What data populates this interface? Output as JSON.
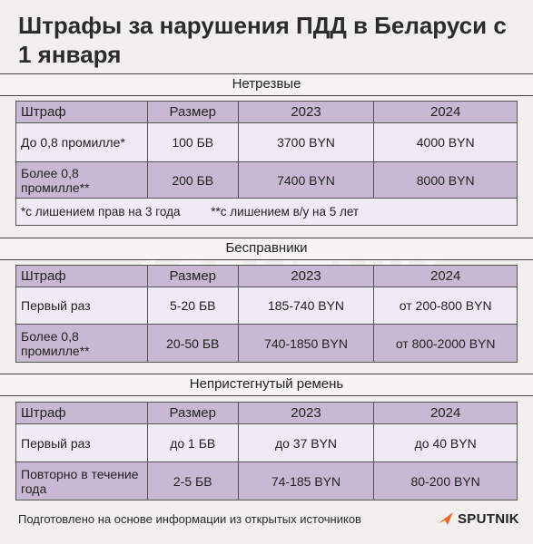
{
  "title": "Штрафы за нарушения ПДД в Беларуси с 1 января",
  "watermark": "SPUTNIK",
  "columns": [
    "Штраф",
    "Размер",
    "2023",
    "2024"
  ],
  "sections": [
    {
      "name": "Нетрезвые",
      "rows": [
        [
          "До 0,8 промилле*",
          "100 БВ",
          "3700 BYN",
          "4000 BYN"
        ],
        [
          "Более 0,8 промилле**",
          "200 БВ",
          "7400 BYN",
          "8000 BYN"
        ]
      ],
      "notes": [
        "*с лишением прав на 3 года",
        "**с лишением в/у на 5 лет"
      ]
    },
    {
      "name": "Бесправники",
      "rows": [
        [
          "Первый раз",
          "5-20 БВ",
          "185-740 BYN",
          "от 200-800 BYN"
        ],
        [
          "Более 0,8 промилле**",
          "20-50 БВ",
          "740-1850 BYN",
          "от 800-2000 BYN"
        ]
      ]
    },
    {
      "name": "Непристегнутый ремень",
      "rows": [
        [
          "Первый раз",
          "до 1 БВ",
          "до 37 BYN",
          "до 40 BYN"
        ],
        [
          "Повторно в течение года",
          "2-5 БВ",
          "74-185 BYN",
          "80-200 BYN"
        ]
      ]
    }
  ],
  "footer": "Подготовлено на основе информации из открытых источников",
  "logo": "SPUTNIK",
  "colors": {
    "header_row": "#c9b8d3",
    "light_row": "#efeaf5",
    "background": "#f1f0ef",
    "logo_accent": "#f26522"
  }
}
